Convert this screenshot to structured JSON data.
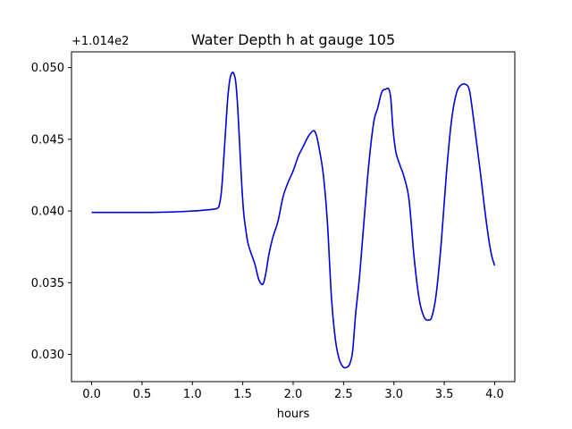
{
  "chart_data": {
    "type": "line",
    "title": "Water Depth h at gauge 105",
    "xlabel": "hours",
    "ylabel": "",
    "offset_label": "+1.014e2",
    "xlim": [
      -0.2,
      4.2
    ],
    "ylim": [
      0.0281,
      0.0511
    ],
    "xticks": [
      0.0,
      0.5,
      1.0,
      1.5,
      2.0,
      2.5,
      3.0,
      3.5,
      4.0
    ],
    "xtick_labels": [
      "0.0",
      "0.5",
      "1.0",
      "1.5",
      "2.0",
      "2.5",
      "3.0",
      "3.5",
      "4.0"
    ],
    "yticks": [
      0.03,
      0.035,
      0.04,
      0.045,
      0.05
    ],
    "ytick_labels": [
      "0.030",
      "0.035",
      "0.040",
      "0.045",
      "0.050"
    ],
    "grid": false,
    "series": [
      {
        "color": "#0000dd",
        "x": [
          0.0,
          0.2,
          0.4,
          0.6,
          0.8,
          1.0,
          1.1,
          1.2,
          1.25,
          1.27,
          1.29,
          1.31,
          1.33,
          1.35,
          1.37,
          1.39,
          1.41,
          1.43,
          1.45,
          1.47,
          1.49,
          1.51,
          1.53,
          1.55,
          1.58,
          1.62,
          1.66,
          1.7,
          1.73,
          1.76,
          1.8,
          1.85,
          1.9,
          1.95,
          2.0,
          2.05,
          2.1,
          2.15,
          2.2,
          2.23,
          2.26,
          2.3,
          2.34,
          2.38,
          2.42,
          2.46,
          2.5,
          2.53,
          2.56,
          2.59,
          2.62,
          2.66,
          2.7,
          2.75,
          2.8,
          2.84,
          2.88,
          2.92,
          2.95,
          2.97,
          2.99,
          3.02,
          3.06,
          3.1,
          3.15,
          3.2,
          3.25,
          3.3,
          3.35,
          3.38,
          3.42,
          3.47,
          3.52,
          3.57,
          3.62,
          3.67,
          3.72,
          3.75,
          3.78,
          3.82,
          3.86,
          3.9,
          3.94,
          3.97,
          4.0
        ],
        "y": [
          0.0399,
          0.0399,
          0.0399,
          0.0399,
          0.03993,
          0.04,
          0.04005,
          0.04012,
          0.0402,
          0.0405,
          0.0415,
          0.0435,
          0.0457,
          0.0478,
          0.0491,
          0.0496,
          0.0496,
          0.049,
          0.0472,
          0.0445,
          0.0418,
          0.0398,
          0.0387,
          0.0378,
          0.0371,
          0.0363,
          0.0352,
          0.0349,
          0.0357,
          0.037,
          0.0382,
          0.0393,
          0.041,
          0.042,
          0.0428,
          0.0438,
          0.0445,
          0.0452,
          0.0456,
          0.0453,
          0.0443,
          0.0425,
          0.0392,
          0.034,
          0.031,
          0.0296,
          0.0291,
          0.0291,
          0.0293,
          0.0302,
          0.0328,
          0.0355,
          0.039,
          0.0432,
          0.0462,
          0.0472,
          0.0483,
          0.0485,
          0.0485,
          0.0478,
          0.0458,
          0.0441,
          0.0432,
          0.0424,
          0.0408,
          0.0368,
          0.0339,
          0.0326,
          0.0324,
          0.0327,
          0.0342,
          0.0378,
          0.0425,
          0.0462,
          0.0482,
          0.0488,
          0.0488,
          0.0484,
          0.047,
          0.0448,
          0.0426,
          0.0402,
          0.0381,
          0.0369,
          0.0362
        ]
      }
    ]
  }
}
